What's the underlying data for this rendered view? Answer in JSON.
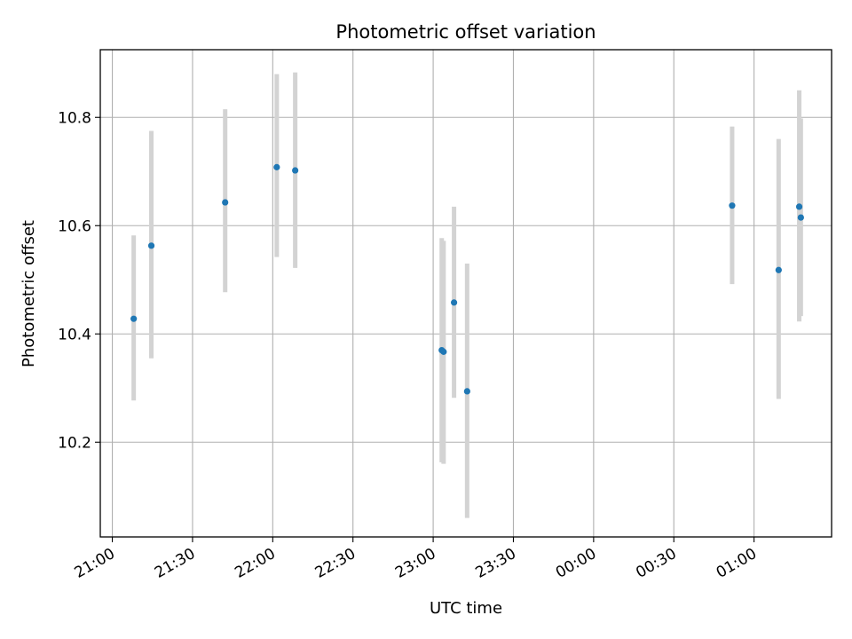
{
  "chart_data": {
    "type": "scatter",
    "title": "Photometric offset variation",
    "xlabel": "UTC time",
    "ylabel": "Photometric offset",
    "x_ticks": [
      "21:00",
      "21:30",
      "22:00",
      "22:30",
      "23:00",
      "23:30",
      "00:00",
      "00:30",
      "01:00"
    ],
    "x_tick_minutes": [
      0,
      30,
      60,
      90,
      120,
      150,
      180,
      210,
      240
    ],
    "y_ticks": [
      "10.2",
      "10.4",
      "10.6",
      "10.8"
    ],
    "y_tick_values": [
      10.2,
      10.4,
      10.6,
      10.8
    ],
    "xlim_minutes": [
      -4.5,
      269
    ],
    "ylim": [
      10.025,
      10.925
    ],
    "grid": true,
    "x_tick_rotation_deg": 30,
    "marker_color": "#1f77b4",
    "errorbar_color": "#d3d3d3",
    "points": [
      {
        "time": "21:08",
        "t": 8,
        "y": 10.428,
        "lo": 10.277,
        "hi": 10.582
      },
      {
        "time": "21:15",
        "t": 14.6,
        "y": 10.563,
        "lo": 10.355,
        "hi": 10.775
      },
      {
        "time": "21:42",
        "t": 42.2,
        "y": 10.643,
        "lo": 10.477,
        "hi": 10.815
      },
      {
        "time": "22:01",
        "t": 61.5,
        "y": 10.708,
        "lo": 10.542,
        "hi": 10.88
      },
      {
        "time": "22:08",
        "t": 68.4,
        "y": 10.702,
        "lo": 10.522,
        "hi": 10.883
      },
      {
        "time": "23:03",
        "t": 123.2,
        "y": 10.37,
        "lo": 10.163,
        "hi": 10.577
      },
      {
        "time": "23:04",
        "t": 123.9,
        "y": 10.367,
        "lo": 10.16,
        "hi": 10.572
      },
      {
        "time": "23:07",
        "t": 127.8,
        "y": 10.458,
        "lo": 10.282,
        "hi": 10.635
      },
      {
        "time": "23:13",
        "t": 132.7,
        "y": 10.294,
        "lo": 10.06,
        "hi": 10.53
      },
      {
        "time": "00:52",
        "t": 231.8,
        "y": 10.637,
        "lo": 10.492,
        "hi": 10.783
      },
      {
        "time": "01:09",
        "t": 249.2,
        "y": 10.518,
        "lo": 10.28,
        "hi": 10.76
      },
      {
        "time": "01:16",
        "t": 256.9,
        "y": 10.635,
        "lo": 10.423,
        "hi": 10.85
      },
      {
        "time": "01:17",
        "t": 257.5,
        "y": 10.615,
        "lo": 10.433,
        "hi": 10.798
      }
    ]
  }
}
